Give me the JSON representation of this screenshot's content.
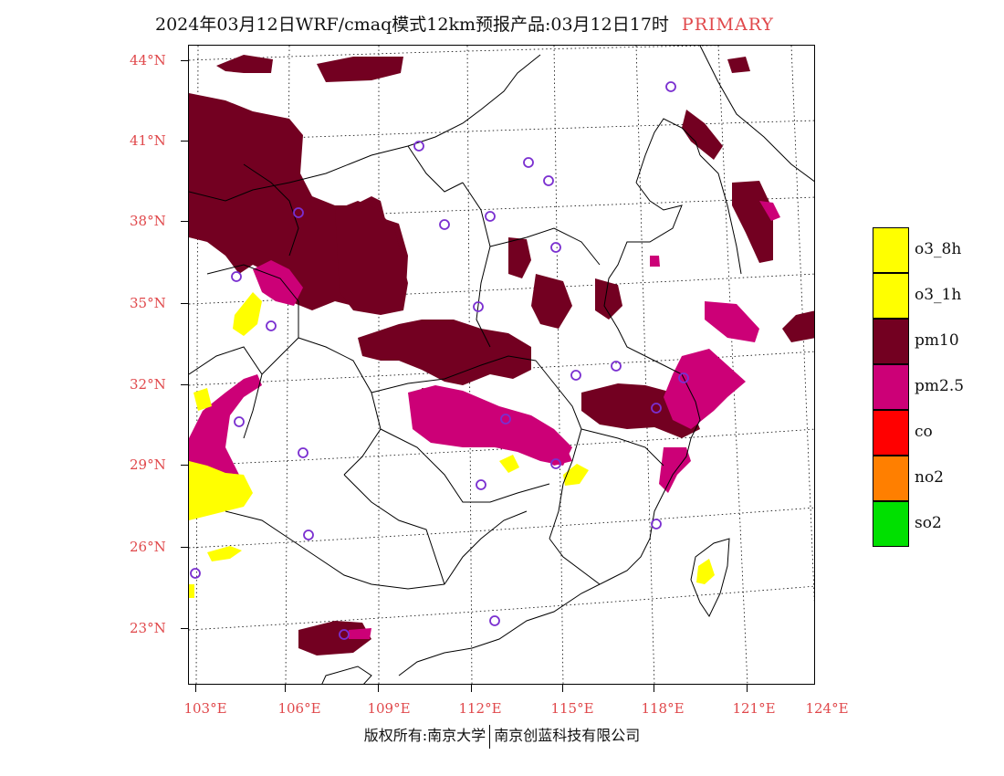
{
  "header": {
    "title": "2024年03月12日WRF/cmaq模式12km预报产品:03月12日17时",
    "primary_label": "PRIMARY"
  },
  "map": {
    "lat_labels": [
      "44°N",
      "41°N",
      "38°N",
      "35°N",
      "32°N",
      "29°N",
      "26°N",
      "23°N"
    ],
    "lon_labels": [
      "103°E",
      "106°E",
      "109°E",
      "112°E",
      "115°E",
      "118°E",
      "121°E",
      "124°E"
    ],
    "colors": {
      "pm10": "#730021",
      "pm25": "#cc0077",
      "o3": "#ffff00",
      "station": "#7a2fd0"
    }
  },
  "legend": [
    {
      "label": "o3_8h",
      "color": "#ffff00"
    },
    {
      "label": "o3_1h",
      "color": "#ffff00"
    },
    {
      "label": "pm10",
      "color": "#730021"
    },
    {
      "label": "pm2.5",
      "color": "#cc0077"
    },
    {
      "label": "co",
      "color": "#ff0000"
    },
    {
      "label": "no2",
      "color": "#ff7f00"
    },
    {
      "label": "so2",
      "color": "#00e000"
    }
  ],
  "footer": {
    "copyright_left": "版权所有:南京大学",
    "copyright_right": "南京创蓝科技有限公司"
  }
}
